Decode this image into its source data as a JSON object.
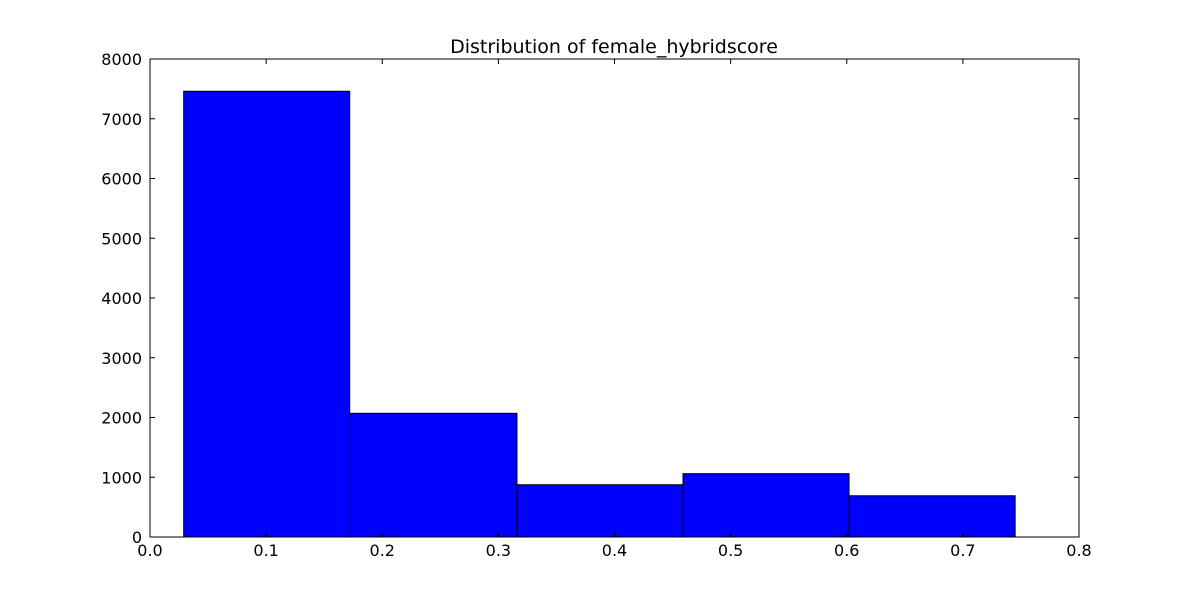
{
  "chart_data": {
    "type": "bar",
    "title": "Distribution of female_hybridscore",
    "xlabel": "",
    "ylabel": "",
    "bins": [
      {
        "x0": 0.029,
        "x1": 0.172,
        "count": 7460
      },
      {
        "x0": 0.172,
        "x1": 0.316,
        "count": 2070
      },
      {
        "x0": 0.316,
        "x1": 0.459,
        "count": 875
      },
      {
        "x0": 0.459,
        "x1": 0.602,
        "count": 1060
      },
      {
        "x0": 0.602,
        "x1": 0.745,
        "count": 690
      }
    ],
    "xlim": [
      0.0,
      0.8
    ],
    "ylim": [
      0,
      8000
    ],
    "xticks": [
      "0.0",
      "0.1",
      "0.2",
      "0.3",
      "0.4",
      "0.5",
      "0.6",
      "0.7",
      "0.8"
    ],
    "yticks": [
      "0",
      "1000",
      "2000",
      "3000",
      "4000",
      "5000",
      "6000",
      "7000",
      "8000"
    ],
    "bar_color": "#0000ff",
    "edge_color": "#000000",
    "grid": false,
    "legend": "none"
  }
}
